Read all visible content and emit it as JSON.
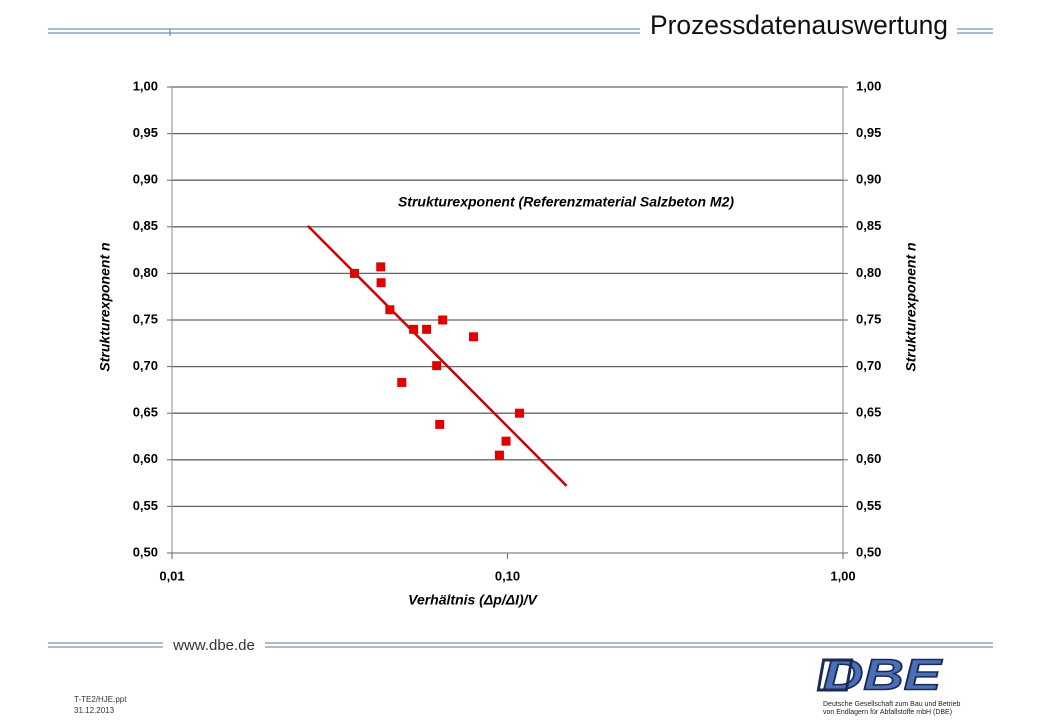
{
  "header": {
    "title": "Prozessdatenauswertung"
  },
  "footer": {
    "url": "www.dbe.de",
    "file": "T-TE2/HJE.ppt",
    "date": "31.12.2013",
    "logo": "DBE",
    "company_line1": "Deutsche Gesellschaft zum Bau und Betrieb",
    "company_line2": "von Endlagern für Abfallstoffe mbH (DBE)"
  },
  "chart_data": {
    "type": "scatter",
    "annotation": "Strukturexponent (Referenzmaterial Salzbeton M2)",
    "annotation_color": "#e00000",
    "xlabel": "Verhältnis (Δp/ΔI)/V",
    "ylabel": "Strukturexponent n",
    "y2label": "Strukturexponent n",
    "xscale": "log",
    "grid": true,
    "xlim": [
      0.01,
      1.0
    ],
    "xticks": [
      {
        "value": 0.01,
        "label": "0,01"
      },
      {
        "value": 0.1,
        "label": "0,10"
      },
      {
        "value": 1.0,
        "label": "1,00"
      }
    ],
    "ylim": [
      0.5,
      1.0
    ],
    "yticks": [
      {
        "value": 0.5,
        "label": "0,50"
      },
      {
        "value": 0.55,
        "label": "0,55"
      },
      {
        "value": 0.6,
        "label": "0,60"
      },
      {
        "value": 0.65,
        "label": "0,65"
      },
      {
        "value": 0.7,
        "label": "0,70"
      },
      {
        "value": 0.75,
        "label": "0,75"
      },
      {
        "value": 0.8,
        "label": "0,80"
      },
      {
        "value": 0.85,
        "label": "0,85"
      },
      {
        "value": 0.9,
        "label": "0,90"
      },
      {
        "value": 0.95,
        "label": "0,95"
      },
      {
        "value": 1.0,
        "label": "1,00"
      }
    ],
    "y2lim": [
      0.5,
      1.0
    ],
    "y2ticks": [
      {
        "value": 0.5,
        "label": "0,50"
      },
      {
        "value": 0.55,
        "label": "0,55"
      },
      {
        "value": 0.6,
        "label": "0,60"
      },
      {
        "value": 0.65,
        "label": "0,65"
      },
      {
        "value": 0.7,
        "label": "0,70"
      },
      {
        "value": 0.75,
        "label": "0,75"
      },
      {
        "value": 0.8,
        "label": "0,80"
      },
      {
        "value": 0.85,
        "label": "0,85"
      },
      {
        "value": 0.9,
        "label": "0,90"
      },
      {
        "value": 0.95,
        "label": "0,95"
      },
      {
        "value": 1.0,
        "label": "1,00"
      }
    ],
    "series": [
      {
        "color": "#e00000",
        "x": [
          0.035,
          0.0419,
          0.042,
          0.0446,
          0.0525,
          0.0574,
          0.0641,
          0.0792,
          0.0484,
          0.0615,
          0.0628,
          0.0946,
          0.099,
          0.1086
        ],
        "values": [
          0.8,
          0.807,
          0.79,
          0.761,
          0.74,
          0.74,
          0.75,
          0.732,
          0.683,
          0.701,
          0.638,
          0.605,
          0.62,
          0.65
        ]
      }
    ],
    "trendline": {
      "color": "#cc0000",
      "x": [
        0.0254,
        0.15
      ],
      "values": [
        0.851,
        0.572
      ]
    }
  }
}
